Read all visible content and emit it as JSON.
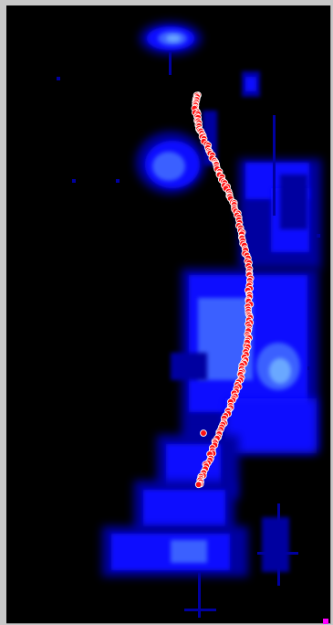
{
  "image": {
    "type": "intensity-map-with-track-overlay",
    "background_color": "#000000",
    "frame_color": "#c8c8c8",
    "colormap": [
      "#000000",
      "#0000a0",
      "#1010ff",
      "#3a60ff",
      "#6aa8ff",
      "#b8f0ff"
    ],
    "track_color": "#ff1010",
    "track_outline_color": "#ffffff",
    "corner_marker_color": "#ff00ff"
  }
}
